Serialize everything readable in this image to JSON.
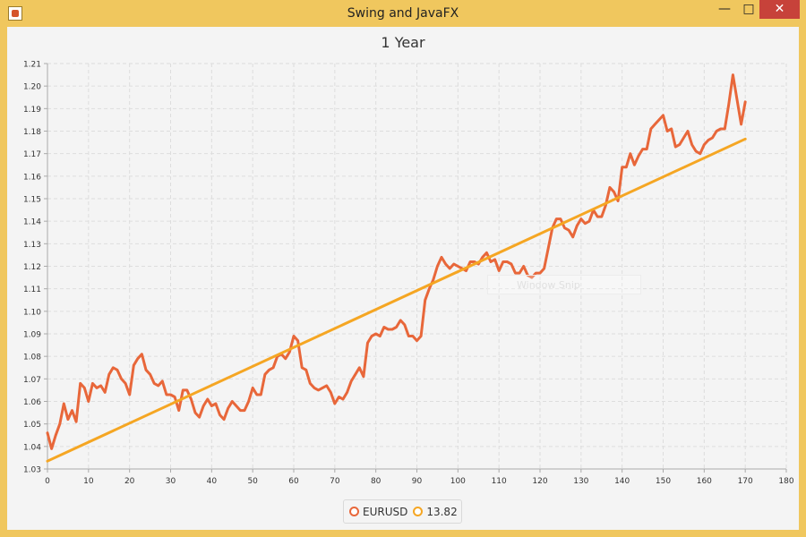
{
  "window": {
    "title": "Swing and JavaFX",
    "minimize_glyph": "—",
    "maximize_glyph": "□",
    "close_glyph": "✕"
  },
  "watermark": "Window Snip",
  "colors": {
    "frame": "#f0c75e",
    "series_1": "#e8673a",
    "series_2": "#f5a623",
    "grid": "#dddddd"
  },
  "chart_data": {
    "type": "line",
    "title": "1 Year",
    "xlim": [
      0,
      180
    ],
    "ylim": [
      1.03,
      1.21
    ],
    "x_ticks": [
      "0",
      "10",
      "20",
      "30",
      "40",
      "50",
      "60",
      "70",
      "80",
      "90",
      "100",
      "110",
      "120",
      "130",
      "140",
      "150",
      "160",
      "170",
      "180"
    ],
    "y_ticks": [
      "1.03",
      "1.04",
      "1.05",
      "1.06",
      "1.07",
      "1.08",
      "1.09",
      "1.10",
      "1.11",
      "1.12",
      "1.13",
      "1.14",
      "1.15",
      "1.16",
      "1.17",
      "1.18",
      "1.19",
      "1.20",
      "1.21"
    ],
    "grid": true,
    "legend_position": "bottom",
    "series": [
      {
        "name": "EURUSD",
        "color": "#e8673a",
        "points": [
          [
            0,
            1.046
          ],
          [
            1,
            1.039
          ],
          [
            2,
            1.045
          ],
          [
            3,
            1.05
          ],
          [
            4,
            1.059
          ],
          [
            5,
            1.052
          ],
          [
            6,
            1.056
          ],
          [
            7,
            1.051
          ],
          [
            8,
            1.068
          ],
          [
            9,
            1.066
          ],
          [
            10,
            1.06
          ],
          [
            11,
            1.068
          ],
          [
            12,
            1.066
          ],
          [
            13,
            1.067
          ],
          [
            14,
            1.064
          ],
          [
            15,
            1.072
          ],
          [
            16,
            1.075
          ],
          [
            17,
            1.074
          ],
          [
            18,
            1.07
          ],
          [
            19,
            1.068
          ],
          [
            20,
            1.063
          ],
          [
            21,
            1.076
          ],
          [
            22,
            1.079
          ],
          [
            23,
            1.081
          ],
          [
            24,
            1.074
          ],
          [
            25,
            1.072
          ],
          [
            26,
            1.068
          ],
          [
            27,
            1.067
          ],
          [
            28,
            1.069
          ],
          [
            29,
            1.063
          ],
          [
            30,
            1.063
          ],
          [
            31,
            1.062
          ],
          [
            32,
            1.056
          ],
          [
            33,
            1.065
          ],
          [
            34,
            1.065
          ],
          [
            35,
            1.061
          ],
          [
            36,
            1.055
          ],
          [
            37,
            1.053
          ],
          [
            38,
            1.058
          ],
          [
            39,
            1.061
          ],
          [
            40,
            1.058
          ],
          [
            41,
            1.059
          ],
          [
            42,
            1.054
          ],
          [
            43,
            1.052
          ],
          [
            44,
            1.057
          ],
          [
            45,
            1.06
          ],
          [
            46,
            1.058
          ],
          [
            47,
            1.056
          ],
          [
            48,
            1.056
          ],
          [
            49,
            1.06
          ],
          [
            50,
            1.066
          ],
          [
            51,
            1.063
          ],
          [
            52,
            1.063
          ],
          [
            53,
            1.072
          ],
          [
            54,
            1.074
          ],
          [
            55,
            1.075
          ],
          [
            56,
            1.08
          ],
          [
            57,
            1.081
          ],
          [
            58,
            1.079
          ],
          [
            59,
            1.082
          ],
          [
            60,
            1.089
          ],
          [
            61,
            1.087
          ],
          [
            62,
            1.075
          ],
          [
            63,
            1.074
          ],
          [
            64,
            1.068
          ],
          [
            65,
            1.066
          ],
          [
            66,
            1.065
          ],
          [
            67,
            1.066
          ],
          [
            68,
            1.067
          ],
          [
            69,
            1.064
          ],
          [
            70,
            1.059
          ],
          [
            71,
            1.062
          ],
          [
            72,
            1.061
          ],
          [
            73,
            1.064
          ],
          [
            74,
            1.069
          ],
          [
            75,
            1.072
          ],
          [
            76,
            1.075
          ],
          [
            77,
            1.071
          ],
          [
            78,
            1.086
          ],
          [
            79,
            1.089
          ],
          [
            80,
            1.09
          ],
          [
            81,
            1.089
          ],
          [
            82,
            1.093
          ],
          [
            83,
            1.092
          ],
          [
            84,
            1.092
          ],
          [
            85,
            1.093
          ],
          [
            86,
            1.096
          ],
          [
            87,
            1.094
          ],
          [
            88,
            1.089
          ],
          [
            89,
            1.089
          ],
          [
            90,
            1.087
          ],
          [
            91,
            1.089
          ],
          [
            92,
            1.105
          ],
          [
            93,
            1.11
          ],
          [
            94,
            1.114
          ],
          [
            95,
            1.12
          ],
          [
            96,
            1.124
          ],
          [
            97,
            1.121
          ],
          [
            98,
            1.119
          ],
          [
            99,
            1.121
          ],
          [
            100,
            1.12
          ],
          [
            101,
            1.119
          ],
          [
            102,
            1.118
          ],
          [
            103,
            1.122
          ],
          [
            104,
            1.122
          ],
          [
            105,
            1.121
          ],
          [
            106,
            1.124
          ],
          [
            107,
            1.126
          ],
          [
            108,
            1.122
          ],
          [
            109,
            1.123
          ],
          [
            110,
            1.118
          ],
          [
            111,
            1.122
          ],
          [
            112,
            1.122
          ],
          [
            113,
            1.121
          ],
          [
            114,
            1.117
          ],
          [
            115,
            1.117
          ],
          [
            116,
            1.12
          ],
          [
            117,
            1.116
          ],
          [
            118,
            1.115
          ],
          [
            119,
            1.117
          ],
          [
            120,
            1.117
          ],
          [
            121,
            1.119
          ],
          [
            122,
            1.128
          ],
          [
            123,
            1.137
          ],
          [
            124,
            1.141
          ],
          [
            125,
            1.141
          ],
          [
            126,
            1.137
          ],
          [
            127,
            1.136
          ],
          [
            128,
            1.133
          ],
          [
            129,
            1.138
          ],
          [
            130,
            1.141
          ],
          [
            131,
            1.139
          ],
          [
            132,
            1.14
          ],
          [
            133,
            1.145
          ],
          [
            134,
            1.142
          ],
          [
            135,
            1.142
          ],
          [
            136,
            1.147
          ],
          [
            137,
            1.155
          ],
          [
            138,
            1.153
          ],
          [
            139,
            1.149
          ],
          [
            140,
            1.164
          ],
          [
            141,
            1.164
          ],
          [
            142,
            1.17
          ],
          [
            143,
            1.165
          ],
          [
            144,
            1.169
          ],
          [
            145,
            1.172
          ],
          [
            146,
            1.172
          ],
          [
            147,
            1.181
          ],
          [
            148,
            1.183
          ],
          [
            149,
            1.185
          ],
          [
            150,
            1.187
          ],
          [
            151,
            1.18
          ],
          [
            152,
            1.181
          ],
          [
            153,
            1.173
          ],
          [
            154,
            1.174
          ],
          [
            155,
            1.177
          ],
          [
            156,
            1.18
          ],
          [
            157,
            1.174
          ],
          [
            158,
            1.171
          ],
          [
            159,
            1.17
          ],
          [
            160,
            1.174
          ],
          [
            161,
            1.176
          ],
          [
            162,
            1.177
          ],
          [
            163,
            1.18
          ],
          [
            164,
            1.181
          ],
          [
            165,
            1.181
          ],
          [
            166,
            1.192
          ],
          [
            167,
            1.205
          ],
          [
            168,
            1.194
          ],
          [
            169,
            1.183
          ],
          [
            170,
            1.193
          ]
        ]
      },
      {
        "name": "13.82",
        "color": "#f5a623",
        "points": [
          [
            0,
            1.0335
          ],
          [
            170,
            1.1765
          ]
        ]
      }
    ]
  }
}
